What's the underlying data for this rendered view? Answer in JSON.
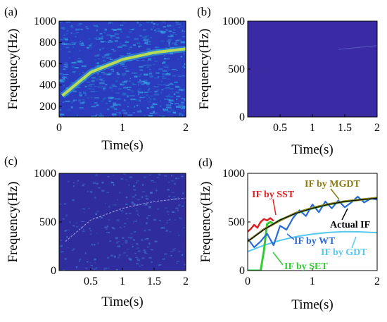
{
  "chart_data": [
    {
      "panel": "(a)",
      "type": "heatmap",
      "xlabel": "Time(s)",
      "ylabel": "Frequency(Hz)",
      "xlim": [
        0,
        2
      ],
      "ylim": [
        100,
        1000
      ],
      "xticks": [
        "0",
        "1",
        "2"
      ],
      "yticks": [
        "200",
        "400",
        "600",
        "800",
        "1000"
      ],
      "ridge": {
        "x": [
          0.05,
          0.5,
          1.0,
          1.5,
          2.0
        ],
        "y": [
          300,
          520,
          640,
          705,
          740
        ]
      },
      "colors": {
        "background": "#2a3bbd",
        "ridge": "#c8e64a",
        "noise": "#35a6e6"
      }
    },
    {
      "panel": "(b)",
      "type": "heatmap",
      "xlabel": "Time(s)",
      "ylabel": "Frequency(Hz)",
      "xlim": [
        0,
        2
      ],
      "ylim": [
        0,
        1000
      ],
      "xticks": [
        "0.5",
        "1",
        "1.5",
        "2"
      ],
      "yticks": [
        "0",
        "500",
        "1000"
      ],
      "ridge": {
        "x": [
          1.4,
          2.0
        ],
        "y": [
          705,
          745
        ]
      },
      "colors": {
        "background": "#3a2ba4",
        "ridge": "#6a6ad0"
      }
    },
    {
      "panel": "(c)",
      "type": "heatmap",
      "xlabel": "Time(s)",
      "ylabel": "Frequency(Hz)",
      "xlim": [
        0,
        2
      ],
      "ylim": [
        0,
        1000
      ],
      "xticks": [
        "0.5",
        "1",
        "1.5",
        "2"
      ],
      "yticks": [
        "0",
        "500",
        "1000"
      ],
      "ridge": {
        "x": [
          0.1,
          0.5,
          1.0,
          1.5,
          2.0
        ],
        "y": [
          300,
          520,
          640,
          710,
          745
        ]
      },
      "colors": {
        "background": "#2f2d9e",
        "ridge": "#9a9ae0",
        "noise": "#4aa0e6"
      }
    },
    {
      "panel": "(d)",
      "type": "line",
      "xlabel": "Time(s)",
      "ylabel": "Frequency(Hz)",
      "xlim": [
        0,
        2
      ],
      "ylim": [
        0,
        1000
      ],
      "xticks": [
        "0",
        "1",
        "2"
      ],
      "yticks": [
        "0",
        "500",
        "1000"
      ],
      "series": [
        {
          "name": "Actual IF",
          "color": "#000000",
          "x": [
            0,
            0.25,
            0.5,
            0.75,
            1.0,
            1.25,
            1.5,
            1.75,
            2.0
          ],
          "y": [
            300,
            420,
            520,
            590,
            640,
            680,
            710,
            728,
            745
          ]
        },
        {
          "name": "IF by MGDT",
          "color": "#8a8a2a",
          "x": [
            0,
            0.25,
            0.5,
            0.75,
            1.0,
            1.25,
            1.5,
            1.75,
            2.0
          ],
          "y": [
            300,
            425,
            515,
            595,
            645,
            683,
            712,
            730,
            748
          ]
        },
        {
          "name": "IF by WT",
          "color": "#2a6ad8",
          "x": [
            0,
            0.1,
            0.2,
            0.3,
            0.4,
            0.5,
            0.6,
            0.7,
            0.8,
            0.9,
            1.0,
            1.1,
            1.2,
            1.3,
            1.4,
            1.5,
            1.6,
            1.7,
            1.8,
            1.9,
            2.0
          ],
          "y": [
            330,
            240,
            300,
            380,
            260,
            460,
            420,
            540,
            620,
            560,
            680,
            600,
            710,
            640,
            720,
            650,
            700,
            760,
            700,
            740,
            730
          ]
        },
        {
          "name": "IF by GDT",
          "color": "#55c8f0",
          "x": [
            0,
            0.25,
            0.5,
            0.75,
            1.0,
            1.25,
            1.5,
            1.75,
            2.0
          ],
          "y": [
            195,
            260,
            310,
            350,
            375,
            392,
            400,
            398,
            390
          ]
        },
        {
          "name": "IF by SST",
          "color": "#e02020",
          "x": [
            0,
            0.05,
            0.1,
            0.15,
            0.2,
            0.25,
            0.3,
            0.35,
            0.4
          ],
          "y": [
            400,
            430,
            470,
            440,
            500,
            530,
            515,
            540,
            510
          ]
        },
        {
          "name": "IF by SET",
          "color": "#33cc33",
          "x": [
            0,
            0.1,
            0.2,
            0.25,
            0.3,
            0.35,
            0.4,
            0.5,
            0.75,
            1.0,
            1.25,
            1.5,
            1.75,
            2.0
          ],
          "y": [
            0,
            0,
            0,
            200,
            480,
            500,
            480,
            520,
            590,
            640,
            680,
            710,
            728,
            745
          ]
        }
      ],
      "annotations": [
        {
          "text": "IF by SST",
          "color": "#e02020"
        },
        {
          "text": "IF by MGDT",
          "color": "#8a7a10"
        },
        {
          "text": "Actual IF",
          "color": "#000000"
        },
        {
          "text": "IF by WT",
          "color": "#2a6ad8"
        },
        {
          "text": "IF by GDT",
          "color": "#55c8f0"
        },
        {
          "text": "IF by SET",
          "color": "#33cc33"
        }
      ]
    }
  ]
}
